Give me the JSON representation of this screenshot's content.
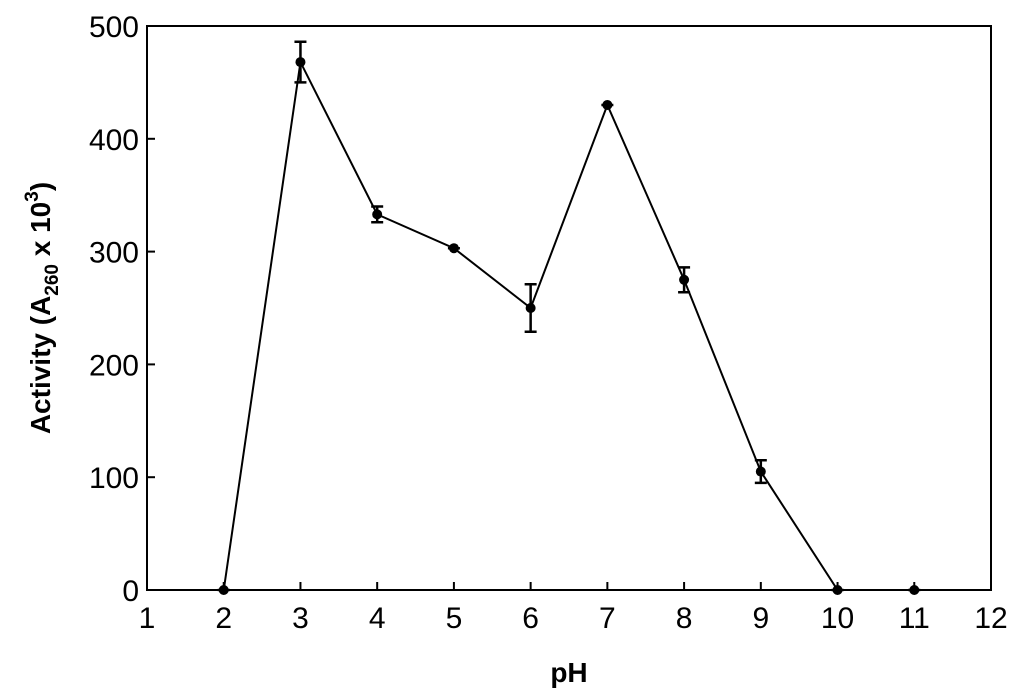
{
  "chart_data": {
    "type": "line",
    "x_label": "pH",
    "y_label_parts": [
      "Activity (A",
      "260",
      " x 10",
      "3",
      ")"
    ],
    "x": [
      2,
      3,
      4,
      5,
      6,
      7,
      8,
      9,
      10,
      11
    ],
    "series": [
      {
        "color": "#000000",
        "values": [
          0,
          468,
          333,
          303,
          250,
          430,
          275,
          105,
          0,
          0
        ],
        "errors": [
          0,
          18,
          7,
          0,
          21,
          0,
          11,
          10,
          0,
          0
        ]
      }
    ],
    "xlim": [
      1,
      12
    ],
    "xticks": [
      1,
      2,
      3,
      4,
      5,
      6,
      7,
      8,
      9,
      10,
      11,
      12
    ],
    "ylim": [
      0,
      500
    ],
    "yticks": [
      0,
      100,
      200,
      300,
      400,
      500
    ]
  }
}
